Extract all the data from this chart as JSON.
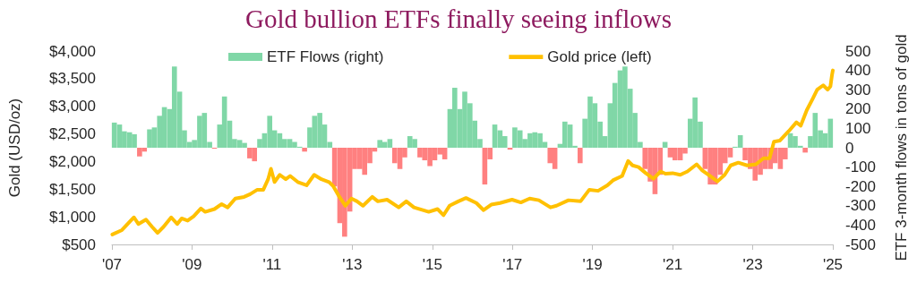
{
  "chart_data": {
    "type": "bar",
    "title": "Gold bullion ETFs finally seeing inflows",
    "ylabel": "Gold (USD/oz)",
    "y2label": "ETF 3-month flows in tons of gold",
    "xlim": [
      2007,
      2025
    ],
    "xticks": [
      {
        "value": 2007,
        "label": "'07"
      },
      {
        "value": 2009,
        "label": "'09"
      },
      {
        "value": 2011,
        "label": "'11"
      },
      {
        "value": 2013,
        "label": "'13"
      },
      {
        "value": 2015,
        "label": "'15"
      },
      {
        "value": 2017,
        "label": "'17"
      },
      {
        "value": 2019,
        "label": "'19"
      },
      {
        "value": 2021,
        "label": "'21"
      },
      {
        "value": 2023,
        "label": "'23"
      },
      {
        "value": 2025,
        "label": "'25"
      }
    ],
    "ylim": [
      500,
      4000
    ],
    "yticks": [
      {
        "value": 500,
        "label": "$500"
      },
      {
        "value": 1000,
        "label": "$1,000"
      },
      {
        "value": 1500,
        "label": "$1,500"
      },
      {
        "value": 2000,
        "label": "$2,000"
      },
      {
        "value": 2500,
        "label": "$2,500"
      },
      {
        "value": 3000,
        "label": "$3,000"
      },
      {
        "value": 3500,
        "label": "$3,500"
      },
      {
        "value": 4000,
        "label": "$4,000"
      }
    ],
    "y2lim": [
      -500,
      500
    ],
    "y2ticks": [
      -500,
      -400,
      -300,
      -200,
      -100,
      0,
      100,
      200,
      300,
      400,
      500
    ],
    "series": [
      {
        "name": "ETF Flows (right)",
        "axis": "y2",
        "color": "#80d7a7",
        "x": [
          2007.06,
          2007.19,
          2007.31,
          2007.44,
          2007.56,
          2007.69,
          2007.81,
          2007.94,
          2008.06,
          2008.19,
          2008.31,
          2008.44,
          2008.56,
          2008.69,
          2008.81,
          2008.94,
          2009.06,
          2009.19,
          2009.31,
          2009.44,
          2009.56,
          2009.69,
          2009.81,
          2009.94,
          2010.06,
          2010.19,
          2010.31,
          2010.44,
          2010.56,
          2010.69,
          2010.81,
          2010.94,
          2011.06,
          2011.19,
          2011.31,
          2011.44,
          2011.56,
          2011.69,
          2011.81,
          2011.94,
          2012.06,
          2012.19,
          2012.31,
          2012.44,
          2012.56,
          2012.69,
          2012.81,
          2012.94,
          2013.06,
          2013.19,
          2013.31,
          2013.44,
          2013.56,
          2013.69,
          2013.81,
          2013.94,
          2014.06,
          2014.19,
          2014.31,
          2014.44,
          2014.56,
          2014.69,
          2014.81,
          2014.94,
          2015.06,
          2015.19,
          2015.31,
          2015.44,
          2015.56,
          2015.69,
          2015.81,
          2015.94,
          2016.06,
          2016.19,
          2016.31,
          2016.44,
          2016.56,
          2016.69,
          2016.81,
          2016.94,
          2017.06,
          2017.19,
          2017.31,
          2017.44,
          2017.56,
          2017.69,
          2017.81,
          2017.94,
          2018.06,
          2018.19,
          2018.31,
          2018.44,
          2018.56,
          2018.69,
          2018.81,
          2018.94,
          2019.06,
          2019.19,
          2019.31,
          2019.44,
          2019.56,
          2019.69,
          2019.81,
          2019.94,
          2020.06,
          2020.19,
          2020.31,
          2020.44,
          2020.56,
          2020.69,
          2020.81,
          2020.94,
          2021.06,
          2021.19,
          2021.31,
          2021.44,
          2021.56,
          2021.69,
          2021.81,
          2021.94,
          2022.06,
          2022.19,
          2022.31,
          2022.44,
          2022.56,
          2022.69,
          2022.81,
          2022.94,
          2023.06,
          2023.19,
          2023.31,
          2023.44,
          2023.56,
          2023.69,
          2023.81,
          2023.94,
          2024.06,
          2024.19,
          2024.31,
          2024.44,
          2024.56,
          2024.69,
          2024.81,
          2024.94
        ],
        "values": [
          130,
          120,
          85,
          80,
          70,
          -45,
          -20,
          95,
          105,
          165,
          210,
          200,
          420,
          290,
          90,
          30,
          40,
          165,
          180,
          30,
          -5,
          120,
          265,
          140,
          45,
          40,
          25,
          -55,
          -70,
          45,
          75,
          165,
          90,
          75,
          45,
          45,
          30,
          5,
          -20,
          105,
          165,
          180,
          120,
          30,
          -200,
          -390,
          -460,
          -330,
          -110,
          -110,
          -140,
          -80,
          -20,
          40,
          30,
          45,
          -80,
          -110,
          -50,
          60,
          45,
          -50,
          -65,
          -95,
          -65,
          -35,
          -60,
          200,
          310,
          200,
          290,
          230,
          140,
          45,
          -190,
          -60,
          120,
          90,
          60,
          -10,
          105,
          90,
          45,
          75,
          80,
          75,
          30,
          -80,
          -110,
          20,
          135,
          120,
          10,
          -80,
          150,
          265,
          230,
          135,
          60,
          230,
          335,
          400,
          420,
          305,
          180,
          30,
          -110,
          -175,
          -240,
          -140,
          30,
          -50,
          -65,
          -65,
          -30,
          150,
          260,
          135,
          -110,
          -190,
          -190,
          -140,
          -80,
          -50,
          5,
          65,
          -65,
          -110,
          -170,
          -140,
          -110,
          -110,
          -80,
          -110,
          -60,
          75,
          60,
          10,
          -25,
          60,
          180,
          90,
          75,
          150
        ],
        "colors": [
          "#80d7a7",
          "#80d7a7",
          "#80d7a7",
          "#80d7a7",
          "#80d7a7",
          "#ff8080",
          "#ff8080",
          "#80d7a7",
          "#80d7a7",
          "#80d7a7",
          "#80d7a7",
          "#80d7a7",
          "#80d7a7",
          "#80d7a7",
          "#80d7a7",
          "#80d7a7",
          "#80d7a7",
          "#80d7a7",
          "#80d7a7",
          "#80d7a7",
          "#ff8080",
          "#80d7a7",
          "#80d7a7",
          "#80d7a7",
          "#80d7a7",
          "#80d7a7",
          "#80d7a7",
          "#ff8080",
          "#ff8080",
          "#80d7a7",
          "#80d7a7",
          "#80d7a7",
          "#80d7a7",
          "#80d7a7",
          "#80d7a7",
          "#80d7a7",
          "#80d7a7",
          "#80d7a7",
          "#ff8080",
          "#80d7a7",
          "#80d7a7",
          "#80d7a7",
          "#80d7a7",
          "#80d7a7",
          "#ff8080",
          "#ff8080",
          "#ff8080",
          "#ff8080",
          "#ff8080",
          "#ff8080",
          "#ff8080",
          "#ff8080",
          "#ff8080",
          "#80d7a7",
          "#80d7a7",
          "#80d7a7",
          "#ff8080",
          "#ff8080",
          "#ff8080",
          "#80d7a7",
          "#80d7a7",
          "#ff8080",
          "#ff8080",
          "#ff8080",
          "#ff8080",
          "#ff8080",
          "#ff8080",
          "#80d7a7",
          "#80d7a7",
          "#80d7a7",
          "#80d7a7",
          "#80d7a7",
          "#80d7a7",
          "#80d7a7",
          "#ff8080",
          "#ff8080",
          "#80d7a7",
          "#80d7a7",
          "#80d7a7",
          "#ff8080",
          "#80d7a7",
          "#80d7a7",
          "#80d7a7",
          "#80d7a7",
          "#80d7a7",
          "#80d7a7",
          "#80d7a7",
          "#ff8080",
          "#ff8080",
          "#80d7a7",
          "#80d7a7",
          "#80d7a7",
          "#80d7a7",
          "#ff8080",
          "#80d7a7",
          "#80d7a7",
          "#80d7a7",
          "#80d7a7",
          "#80d7a7",
          "#80d7a7",
          "#80d7a7",
          "#80d7a7",
          "#80d7a7",
          "#80d7a7",
          "#80d7a7",
          "#80d7a7",
          "#ff8080",
          "#ff8080",
          "#ff8080",
          "#ff8080",
          "#80d7a7",
          "#ff8080",
          "#ff8080",
          "#ff8080",
          "#ff8080",
          "#80d7a7",
          "#80d7a7",
          "#80d7a7",
          "#ff8080",
          "#ff8080",
          "#ff8080",
          "#ff8080",
          "#ff8080",
          "#ff8080",
          "#80d7a7",
          "#80d7a7",
          "#ff8080",
          "#ff8080",
          "#ff8080",
          "#ff8080",
          "#ff8080",
          "#ff8080",
          "#ff8080",
          "#ff8080",
          "#ff8080",
          "#80d7a7",
          "#80d7a7",
          "#80d7a7",
          "#ff8080",
          "#80d7a7",
          "#80d7a7",
          "#80d7a7",
          "#80d7a7",
          "#80d7a7"
        ]
      },
      {
        "name": "Gold price (left)",
        "type": "line",
        "axis": "y",
        "color": "#ffc000",
        "marker": "none",
        "x": [
          2007.01,
          2007.25,
          2007.47,
          2007.55,
          2007.66,
          2007.85,
          2008.0,
          2008.14,
          2008.29,
          2008.48,
          2008.63,
          2008.74,
          2008.89,
          2009.04,
          2009.22,
          2009.33,
          2009.56,
          2009.74,
          2009.89,
          2010.08,
          2010.3,
          2010.45,
          2010.63,
          2010.78,
          2010.9,
          2010.97,
          2011.06,
          2011.19,
          2011.34,
          2011.45,
          2011.64,
          2011.86,
          2012.05,
          2012.23,
          2012.42,
          2012.53,
          2012.68,
          2012.83,
          2012.98,
          2013.12,
          2013.27,
          2013.5,
          2013.64,
          2013.87,
          2014.16,
          2014.35,
          2014.54,
          2014.91,
          2015.13,
          2015.28,
          2015.43,
          2015.65,
          2015.84,
          2016.1,
          2016.28,
          2016.47,
          2016.69,
          2016.99,
          2017.21,
          2017.43,
          2017.66,
          2017.95,
          2018.1,
          2018.4,
          2018.7,
          2018.92,
          2019.14,
          2019.37,
          2019.51,
          2019.74,
          2019.89,
          2020.0,
          2020.15,
          2020.33,
          2020.52,
          2020.7,
          2020.82,
          2021.0,
          2021.19,
          2021.37,
          2021.6,
          2021.74,
          2021.93,
          2022.12,
          2022.3,
          2022.45,
          2022.64,
          2022.86,
          2023.08,
          2023.27,
          2023.42,
          2023.53,
          2023.68,
          2023.9,
          2024.09,
          2024.2,
          2024.35,
          2024.5,
          2024.61,
          2024.76,
          2024.87,
          2024.94,
          2024.98,
          2025.0
        ],
        "values": [
          680,
          760,
          930,
          990,
          870,
          950,
          820,
          710,
          820,
          990,
          870,
          970,
          930,
          1010,
          1150,
          1090,
          1140,
          1230,
          1170,
          1330,
          1360,
          1410,
          1490,
          1490,
          1680,
          1870,
          1630,
          1760,
          1680,
          1740,
          1630,
          1570,
          1760,
          1680,
          1630,
          1550,
          1360,
          1200,
          1330,
          1280,
          1200,
          1360,
          1280,
          1310,
          1170,
          1280,
          1170,
          1090,
          1140,
          1030,
          1200,
          1280,
          1340,
          1250,
          1120,
          1220,
          1250,
          1310,
          1260,
          1330,
          1300,
          1170,
          1200,
          1300,
          1280,
          1490,
          1470,
          1570,
          1660,
          1740,
          2010,
          1930,
          1900,
          1790,
          1690,
          1820,
          1780,
          1790,
          1760,
          1820,
          1950,
          1840,
          1740,
          1640,
          1760,
          1930,
          1980,
          1930,
          1950,
          2060,
          2060,
          2360,
          2380,
          2550,
          2710,
          2650,
          2930,
          3140,
          3300,
          3380,
          3300,
          3360,
          3570,
          3650
        ]
      }
    ],
    "legend": "top",
    "grid": false
  }
}
